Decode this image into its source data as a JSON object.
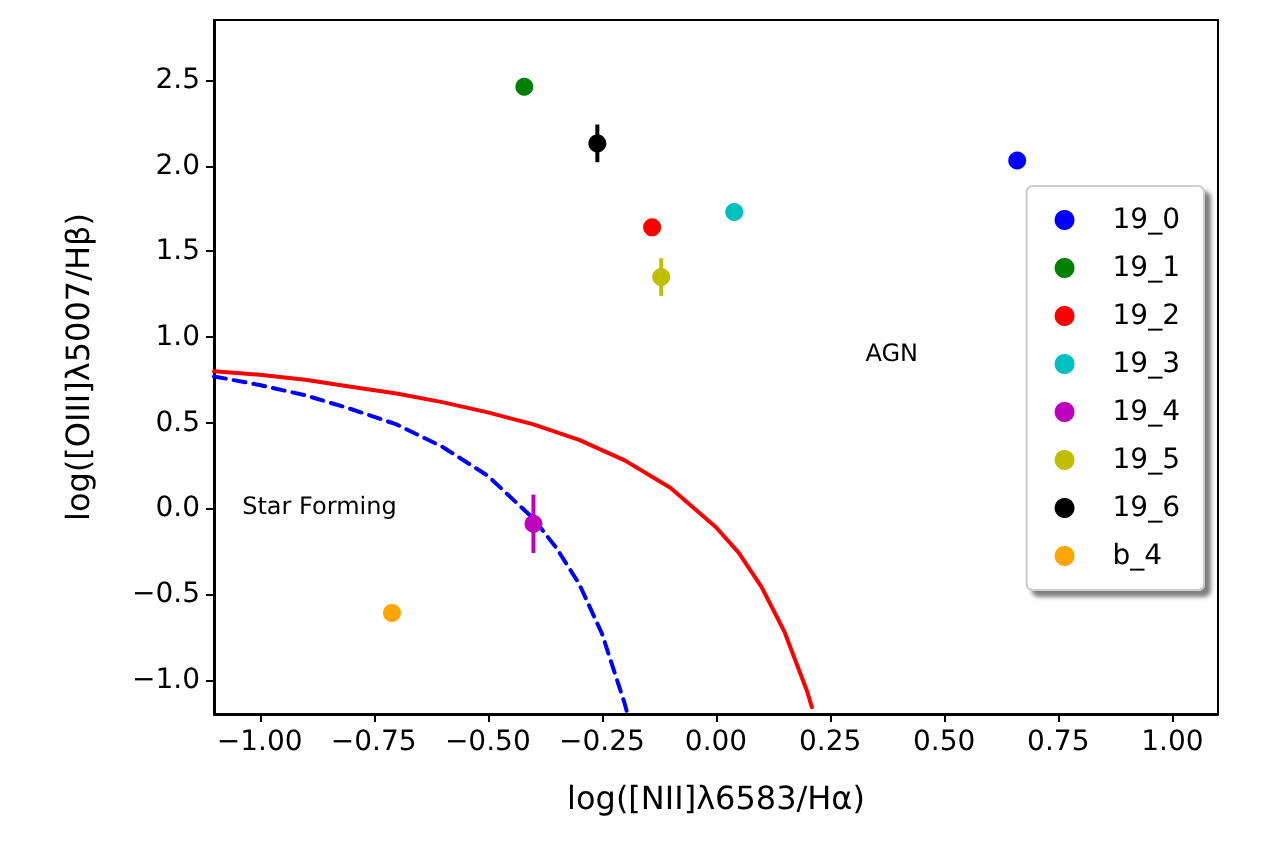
{
  "chart_data": {
    "type": "scatter",
    "xlabel": "log([NII]λ6583/Hα)",
    "ylabel": "log([OIII]λ5007/Hβ)",
    "xlim": [
      -1.1,
      1.1
    ],
    "ylim": [
      -1.2,
      2.85
    ],
    "xticks": [
      {
        "value": -1,
        "label": "−1.00"
      },
      {
        "value": -0.75,
        "label": "−0.75"
      },
      {
        "value": -0.5,
        "label": "−0.50"
      },
      {
        "value": -0.25,
        "label": "−0.25"
      },
      {
        "value": 0,
        "label": "0.00"
      },
      {
        "value": 0.25,
        "label": "0.25"
      },
      {
        "value": 0.5,
        "label": "0.50"
      },
      {
        "value": 0.75,
        "label": "0.75"
      },
      {
        "value": 1,
        "label": "1.00"
      }
    ],
    "yticks": [
      {
        "value": -1,
        "label": "−1.0"
      },
      {
        "value": -0.5,
        "label": "−0.5"
      },
      {
        "value": 0,
        "label": "0.0"
      },
      {
        "value": 0.5,
        "label": "0.5"
      },
      {
        "value": 1,
        "label": "1.0"
      },
      {
        "value": 1.5,
        "label": "1.5"
      },
      {
        "value": 2,
        "label": "2.0"
      },
      {
        "value": 2.5,
        "label": "2.5"
      }
    ],
    "grid": false,
    "legend": "right",
    "marker": "circle",
    "series": [
      {
        "name": "19_0",
        "color": "#0000ff",
        "x": [
          0.66
        ],
        "values": [
          2.03
        ],
        "errors": [
          null
        ]
      },
      {
        "name": "19_1",
        "color": "#008000",
        "x": [
          -0.42
        ],
        "values": [
          2.46
        ],
        "errors": [
          null
        ]
      },
      {
        "name": "19_2",
        "color": "#ff0000",
        "x": [
          -0.14
        ],
        "values": [
          1.64
        ],
        "errors": [
          null
        ]
      },
      {
        "name": "19_3",
        "color": "#00bfbf",
        "x": [
          0.04
        ],
        "values": [
          1.73
        ],
        "errors": [
          null
        ]
      },
      {
        "name": "19_4",
        "color": "#bf00bf",
        "x": [
          -0.4
        ],
        "values": [
          -0.09
        ],
        "errors": [
          0.17
        ]
      },
      {
        "name": "19_5",
        "color": "#bfbf00",
        "x": [
          -0.12
        ],
        "values": [
          1.35
        ],
        "errors": [
          0.11
        ]
      },
      {
        "name": "19_6",
        "color": "#000000",
        "x": [
          -0.26
        ],
        "values": [
          2.13
        ],
        "errors": [
          0.11
        ]
      },
      {
        "name": "b_4",
        "color": "#ffa500",
        "x": [
          -0.71
        ],
        "values": [
          -0.61
        ],
        "errors": [
          null
        ]
      },
      {
        "type": "line",
        "color": "#ff0000",
        "line_style": "solid",
        "marker": "none",
        "x": [
          -1.1,
          -1.0,
          -0.9,
          -0.8,
          -0.7,
          -0.6,
          -0.5,
          -0.4,
          -0.3,
          -0.2,
          -0.1,
          0,
          0.05,
          0.1,
          0.15,
          0.2,
          0.21
        ],
        "values": [
          0.8,
          0.78,
          0.75,
          0.71,
          0.67,
          0.62,
          0.56,
          0.49,
          0.4,
          0.28,
          0.12,
          -0.11,
          -0.26,
          -0.46,
          -0.72,
          -1.07,
          -1.16
        ]
      },
      {
        "type": "line",
        "color": "#0000ff",
        "line_style": "dashed",
        "marker": "none",
        "x": [
          -1.1,
          -1.0,
          -0.9,
          -0.8,
          -0.7,
          -0.6,
          -0.5,
          -0.4,
          -0.35,
          -0.3,
          -0.25,
          -0.2,
          -0.195
        ],
        "values": [
          0.77,
          0.72,
          0.66,
          0.58,
          0.49,
          0.36,
          0.19,
          -0.06,
          -0.23,
          -0.44,
          -0.73,
          -1.14,
          -1.19
        ]
      }
    ],
    "annotations": [
      "AGN",
      "Star Forming"
    ]
  }
}
